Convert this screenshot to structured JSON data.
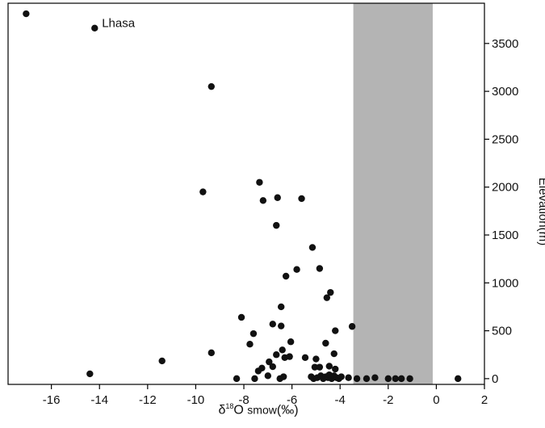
{
  "chart_data": {
    "type": "scatter",
    "title": "",
    "xlabel": {
      "prefix": "δ",
      "sup": "18",
      "main": "O",
      "sub": "smow",
      "suffix": "(‰)"
    },
    "ylabel": "Elevation(m)",
    "xlim": [
      -17.8,
      2.0
    ],
    "ylim": [
      -60,
      3920
    ],
    "xticks": [
      -16,
      -14,
      -12,
      -10,
      -8,
      -6,
      -4,
      -2,
      0,
      2
    ],
    "xtick_labels": [
      "-16",
      "-14",
      "-12",
      "-10",
      "-8",
      "-6",
      "-4",
      "-2",
      "0",
      "2"
    ],
    "yticks": [
      0,
      500,
      1000,
      1500,
      2000,
      2500,
      3000,
      3500
    ],
    "ytick_labels": [
      "0",
      "500",
      "1000",
      "1500",
      "2000",
      "2500",
      "3000",
      "3500"
    ],
    "y_axis_side": "right",
    "grid": false,
    "shaded_band": {
      "x0": -3.45,
      "x1": -0.15,
      "color": "#b4b4b4"
    },
    "annotations": [
      {
        "text": "Lhasa",
        "x": -13.9,
        "y": 3670
      }
    ],
    "marker_color": "#111111",
    "points": [
      [
        -17.05,
        3810
      ],
      [
        -14.2,
        3660
      ],
      [
        -9.35,
        3050
      ],
      [
        -9.7,
        1950
      ],
      [
        -14.4,
        50
      ],
      [
        -11.4,
        185
      ],
      [
        -9.35,
        270
      ],
      [
        -7.35,
        2050
      ],
      [
        -7.2,
        1860
      ],
      [
        -6.6,
        1890
      ],
      [
        -5.6,
        1880
      ],
      [
        -6.65,
        1600
      ],
      [
        -5.15,
        1370
      ],
      [
        -6.25,
        1070
      ],
      [
        -5.8,
        1140
      ],
      [
        -4.85,
        1150
      ],
      [
        -4.4,
        900
      ],
      [
        -4.55,
        845
      ],
      [
        -6.45,
        750
      ],
      [
        -8.1,
        640
      ],
      [
        -7.6,
        470
      ],
      [
        -6.8,
        570
      ],
      [
        -6.45,
        550
      ],
      [
        -3.5,
        545
      ],
      [
        -4.2,
        500
      ],
      [
        -7.75,
        360
      ],
      [
        -6.05,
        385
      ],
      [
        -4.6,
        370
      ],
      [
        -6.65,
        250
      ],
      [
        -6.4,
        300
      ],
      [
        -6.3,
        220
      ],
      [
        -6.1,
        230
      ],
      [
        -5.45,
        220
      ],
      [
        -5.0,
        205
      ],
      [
        -4.25,
        260
      ],
      [
        -7.4,
        80
      ],
      [
        -7.25,
        110
      ],
      [
        -6.95,
        175
      ],
      [
        -6.8,
        125
      ],
      [
        -5.05,
        120
      ],
      [
        -4.85,
        120
      ],
      [
        -4.45,
        130
      ],
      [
        -4.2,
        100
      ],
      [
        -8.3,
        0
      ],
      [
        -7.55,
        0
      ],
      [
        -7.0,
        30
      ],
      [
        -6.5,
        0
      ],
      [
        -6.35,
        20
      ],
      [
        -5.2,
        20
      ],
      [
        -5.1,
        0
      ],
      [
        -4.95,
        10
      ],
      [
        -4.8,
        30
      ],
      [
        -4.7,
        0
      ],
      [
        -4.6,
        20
      ],
      [
        -4.5,
        10
      ],
      [
        -4.45,
        40
      ],
      [
        -4.35,
        0
      ],
      [
        -4.25,
        30
      ],
      [
        -4.15,
        10
      ],
      [
        -4.05,
        0
      ],
      [
        -3.95,
        20
      ],
      [
        -3.65,
        10
      ],
      [
        -3.3,
        0
      ],
      [
        -2.9,
        0
      ],
      [
        -2.55,
        10
      ],
      [
        -2.0,
        0
      ],
      [
        -1.7,
        0
      ],
      [
        -1.45,
        0
      ],
      [
        -1.1,
        0
      ],
      [
        0.9,
        0
      ]
    ]
  }
}
